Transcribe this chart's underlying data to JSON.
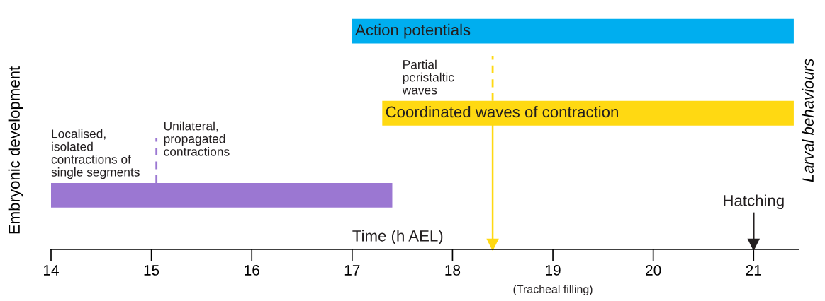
{
  "chart_data": {
    "type": "bar",
    "orientation": "horizontal",
    "categories": [
      "Action potentials",
      "Coordinated waves of contraction",
      null
    ],
    "base": [
      17,
      17.3,
      14
    ],
    "values": [
      4.4,
      4.1,
      3.4
    ],
    "colors": [
      "#00aeef",
      "#ffd912",
      "#9b77d2"
    ],
    "xlabel": "Time (h AEL)",
    "ylabel": "Embryonic development",
    "y2label": "Larval behaviours",
    "xlim": [
      14,
      21.45
    ],
    "xticks": [
      14,
      15,
      16,
      17,
      18,
      19,
      20,
      21
    ],
    "tick_labels": "x",
    "ref_lines": [
      {
        "axis": "x",
        "value": 15.05,
        "color": "#9b77d2",
        "line_style": "dashed"
      },
      {
        "axis": "x",
        "value": 18.4,
        "color": "#ffd912",
        "line_style": "dashed"
      },
      {
        "axis": "x",
        "value": 18.4,
        "color": "#ffd912",
        "line_style": "solid"
      },
      {
        "axis": "x",
        "value": 21,
        "color": "#231f20",
        "line_style": "solid",
        "label": "Hatching"
      }
    ],
    "annotations": [
      "Localised,\nisolated\ncontractions of\nsingle segments",
      "Unilateral,\npropagated\ncontractions",
      "Partial\nperistaltic\nwaves",
      "(Tracheal filling)"
    ]
  }
}
